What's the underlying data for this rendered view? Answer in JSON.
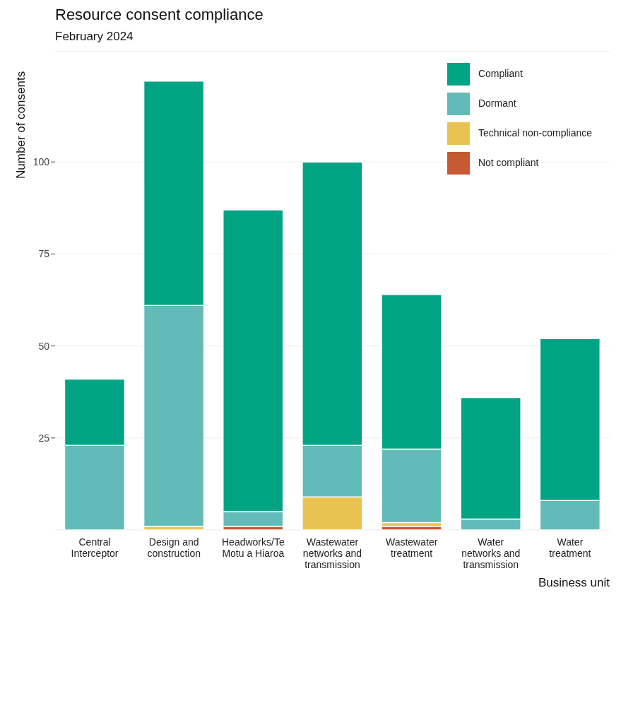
{
  "chart_data": {
    "type": "bar",
    "title": "Resource consent compliance",
    "subtitle": "February 2024",
    "xlabel": "Business unit",
    "ylabel": "Number of consents",
    "categories": [
      "Central Interceptor",
      "Design and construction",
      "Headworks/Te Motu a Hiaroa",
      "Wastewater networks and transmission",
      "Wastewater treatment",
      "Water networks and transmission",
      "Water treatment"
    ],
    "stacked": true,
    "series": [
      {
        "name": "Not compliant",
        "color": "#c65b33",
        "values": [
          0,
          0,
          1,
          0,
          1,
          0,
          0
        ]
      },
      {
        "name": "Technical non-compliance",
        "color": "#e8c350",
        "values": [
          0,
          1,
          0,
          9,
          1,
          0,
          0
        ]
      },
      {
        "name": "Dormant",
        "color": "#62bbb8",
        "values": [
          23,
          60,
          4,
          14,
          20,
          3,
          8
        ]
      },
      {
        "name": "Compliant",
        "color": "#00a383",
        "values": [
          18,
          61,
          82,
          77,
          42,
          33,
          44
        ]
      }
    ],
    "ylim": [
      0,
      130
    ],
    "yticks": [
      25,
      50,
      75,
      100
    ],
    "grid": "y",
    "legend": "top right"
  }
}
